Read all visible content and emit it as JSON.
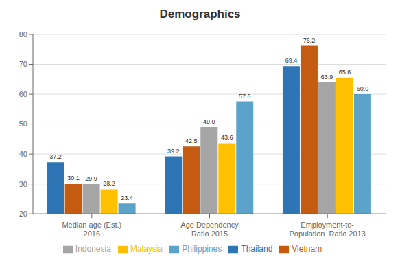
{
  "chart_data": {
    "type": "bar",
    "title": "Demographics",
    "categories": [
      "Median age (Est.)\n2016",
      "Age Dependency\nRatio 2015",
      "Employment-to-\nPopulation  Ratio 2013"
    ],
    "series": [
      {
        "name": "Thailand",
        "color": "#2E75B6",
        "values": [
          37.2,
          39.2,
          69.4
        ],
        "value_labels": [
          "37.2",
          "39.2",
          "69.4"
        ]
      },
      {
        "name": "Vietnam",
        "color": "#C55A11",
        "values": [
          30.1,
          42.5,
          76.2
        ],
        "value_labels": [
          "30.1",
          "42.5",
          "76.2"
        ]
      },
      {
        "name": "Indonesia",
        "color": "#A5A5A5",
        "values": [
          29.9,
          49.0,
          63.9
        ],
        "value_labels": [
          "29.9",
          "49.0",
          "63.9"
        ]
      },
      {
        "name": "Malaysia",
        "color": "#FFC000",
        "values": [
          28.2,
          43.6,
          65.6
        ],
        "value_labels": [
          "28.2",
          "43.6",
          "65.6"
        ]
      },
      {
        "name": "Philippines",
        "color": "#5BA3C9",
        "values": [
          23.4,
          57.6,
          60.0
        ],
        "value_labels": [
          "23.4",
          "57.6",
          "60.0"
        ]
      }
    ],
    "ylim": [
      20,
      80
    ],
    "yticks": [
      20,
      30,
      40,
      50,
      60,
      70,
      80
    ],
    "grid": true,
    "legend": "bottom",
    "data_labels": true
  }
}
